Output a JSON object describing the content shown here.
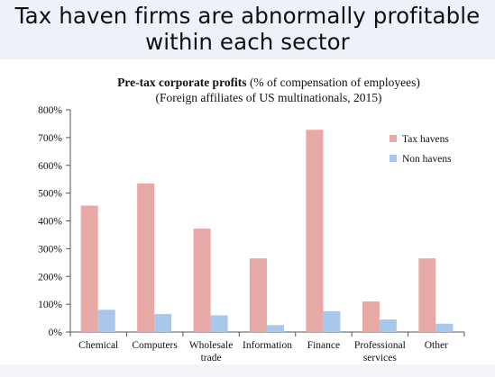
{
  "slide": {
    "title_line1": "Tax haven firms are abnormally profitable",
    "title_line2": "within each sector",
    "header_bg": "#eef1f8"
  },
  "chart_data": {
    "type": "bar",
    "title_bold": "Pre-tax corporate profits",
    "title_rest": " (% of compensation of employees)",
    "subtitle": "(Foreign affiliates of US multinationals, 2015)",
    "xlabel": "",
    "ylabel": "",
    "ylim": [
      0,
      800
    ],
    "yticks": [
      0,
      100,
      200,
      300,
      400,
      500,
      600,
      700,
      800
    ],
    "ytick_labels": [
      "0%",
      "100%",
      "200%",
      "300%",
      "400%",
      "500%",
      "600%",
      "700%",
      "800%"
    ],
    "categories": [
      [
        "Chemical"
      ],
      [
        "Computers"
      ],
      [
        "Wholesale",
        "trade"
      ],
      [
        "Information"
      ],
      [
        "Finance"
      ],
      [
        "Professional",
        "services"
      ],
      [
        "Other"
      ]
    ],
    "series": [
      {
        "name": "Tax havens",
        "color": "#e6a9a6",
        "values": [
          455,
          535,
          372,
          265,
          728,
          110,
          265
        ]
      },
      {
        "name": "Non havens",
        "color": "#a8c7ea",
        "values": [
          80,
          65,
          60,
          25,
          75,
          45,
          30
        ]
      }
    ],
    "legend_position": "top-right",
    "grid": false
  }
}
